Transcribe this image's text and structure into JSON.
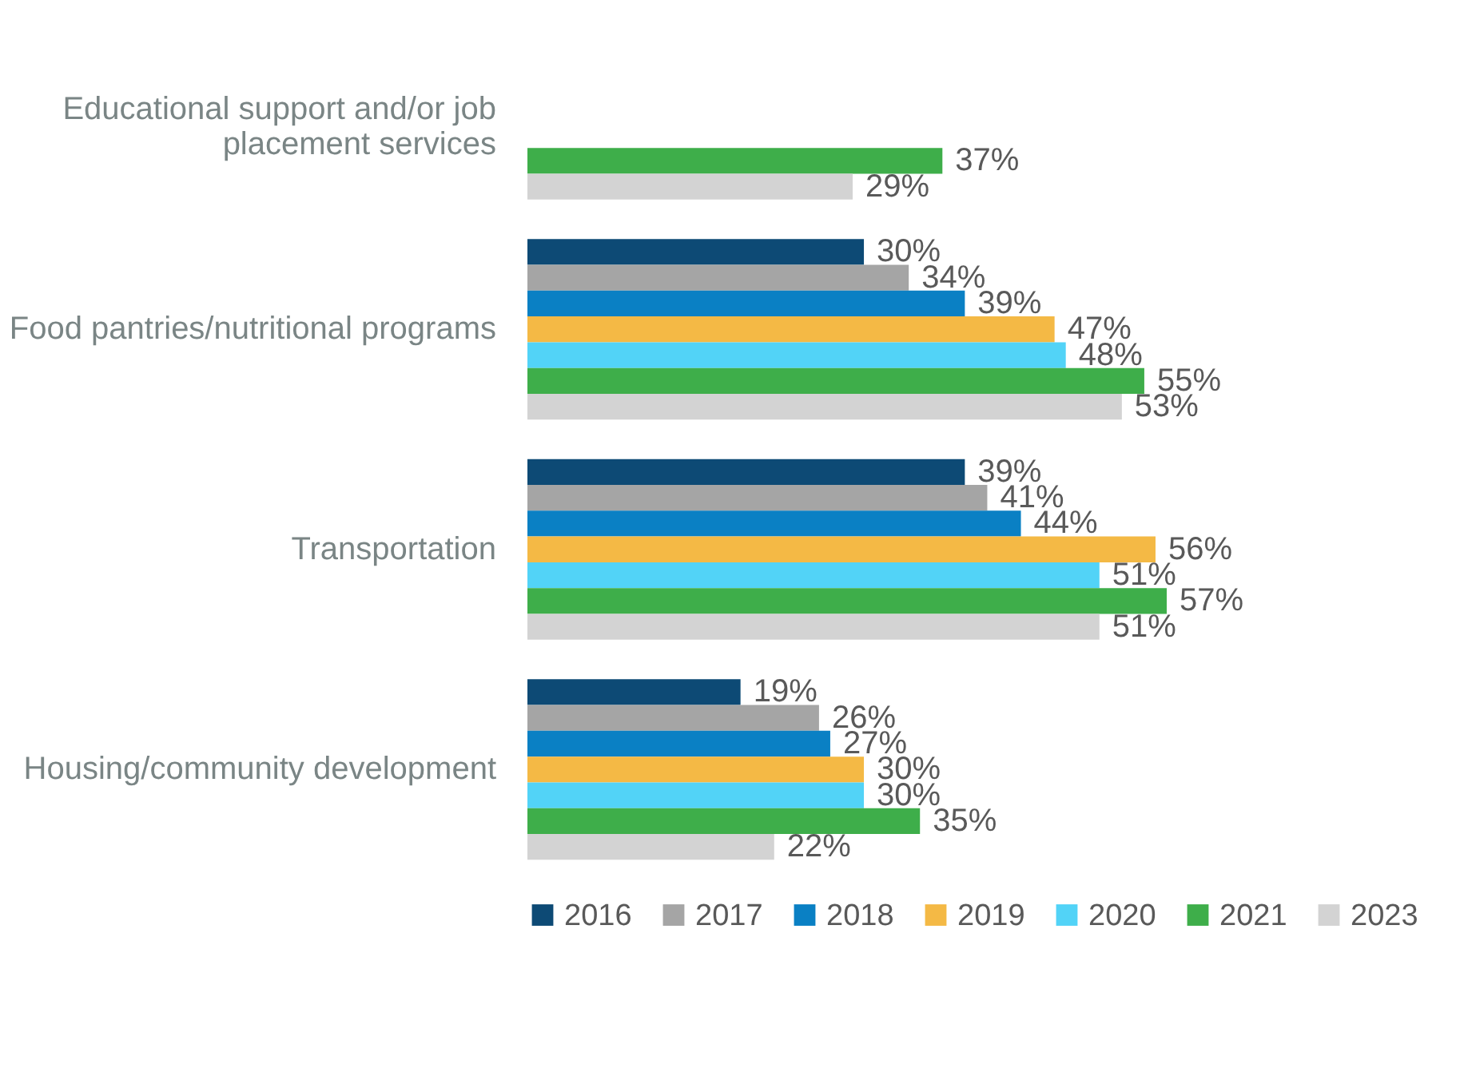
{
  "chart_data": {
    "type": "bar",
    "orientation": "horizontal",
    "legend": "bottom",
    "categories": [
      "Educational support and/or job placement services",
      "Food pantries/nutritional programs",
      "Transportation",
      "Housing/community development"
    ],
    "series": [
      {
        "name": "2016",
        "color": "#0d4a75",
        "values": [
          null,
          30,
          39,
          19
        ],
        "value_labels": [
          null,
          "30%",
          "39%",
          "19%"
        ]
      },
      {
        "name": "2017",
        "color": "#a5a5a5",
        "values": [
          null,
          34,
          41,
          26
        ],
        "value_labels": [
          null,
          "34%",
          "41%",
          "26%"
        ]
      },
      {
        "name": "2018",
        "color": "#0a80c4",
        "values": [
          null,
          39,
          44,
          27
        ],
        "value_labels": [
          null,
          "39%",
          "44%",
          "27%"
        ]
      },
      {
        "name": "2019",
        "color": "#f4b945",
        "values": [
          null,
          47,
          56,
          30
        ],
        "value_labels": [
          null,
          "47%",
          "56%",
          "30%"
        ]
      },
      {
        "name": "2020",
        "color": "#52d3f7",
        "values": [
          null,
          48,
          51,
          30
        ],
        "value_labels": [
          null,
          "48%",
          "51%",
          "30%"
        ]
      },
      {
        "name": "2021",
        "color": "#3eae4a",
        "values": [
          37,
          55,
          57,
          35
        ],
        "value_labels": [
          "37%",
          "55%",
          "57%",
          "35%"
        ]
      },
      {
        "name": "2023",
        "color": "#d3d3d3",
        "values": [
          29,
          53,
          51,
          22
        ],
        "value_labels": [
          "29%",
          "53%",
          "51%",
          "22%"
        ]
      }
    ]
  }
}
